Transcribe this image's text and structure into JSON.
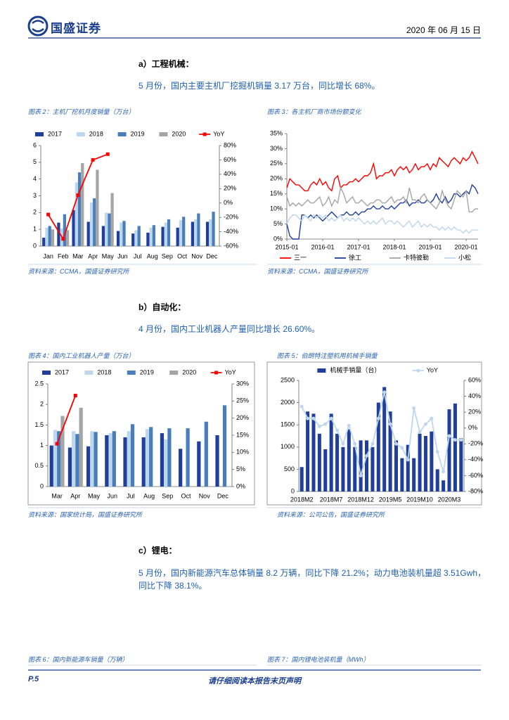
{
  "header": {
    "logo": "国盛证券",
    "date": "2020 年 06 月 15 日"
  },
  "sections": [
    {
      "heading": "a）工程机械：",
      "text": "5 月份，国内主要主机厂挖掘机销量 3.17 万台，同比增长 68%。"
    },
    {
      "heading": "b）自动化：",
      "text": "4 月份，国内工业机器人产量同比增长 26.60%。"
    },
    {
      "heading": "c）锂电：",
      "text": "5 月份，国内新能源汽车总体销量 8.2 万辆，同比下降 21.2%；动力电池装机量超 3.51Gwh，同比下降 38.1%。"
    }
  ],
  "figures": [
    {
      "title": "图表 2：主机厂挖机月度销量（万台）",
      "source": "资料来源：CCMA，国盛证券研究所"
    },
    {
      "title": "图表 3：各主机厂商市场份额变化",
      "source": "资料来源：CCMA，国盛证券研究所"
    },
    {
      "title": "图表 4：国内工业机器人产量（万台）",
      "source": "资料来源：国家统计局，国盛证券研究所"
    },
    {
      "title": "图表 5：伯朗特注塑机用机械手销量",
      "source": "资料来源：公司公告，国盛证券研究所"
    },
    {
      "title": "图表 6：国内新能源车销量（万辆）"
    },
    {
      "title": "图表 7：国内锂电池装机量（MWh）"
    }
  ],
  "footer": {
    "page": "P.5",
    "notice": "请仔细阅读本报告末页声明"
  },
  "chart_data": [
    {
      "type": "bar",
      "legend": "top",
      "categories": [
        "Jan",
        "Feb",
        "Mar",
        "Apr",
        "May",
        "Jun",
        "Jul",
        "Aug",
        "Sep",
        "Oct",
        "Nov",
        "Dec"
      ],
      "ylim": [
        0,
        6
      ],
      "yticks": [
        0,
        1,
        2,
        3,
        4,
        5,
        6
      ],
      "y2lim": [
        -60,
        80
      ],
      "y2ticks": [
        {
          "value": -60,
          "label": "-60%"
        },
        {
          "value": -40,
          "label": "-40%"
        },
        {
          "value": -20,
          "label": "-20%"
        },
        {
          "value": 0,
          "label": "0%"
        },
        {
          "value": 20,
          "label": "20%"
        },
        {
          "value": 40,
          "label": "40%"
        },
        {
          "value": 60,
          "label": "60%"
        },
        {
          "value": 80,
          "label": "80%"
        }
      ],
      "series": [
        {
          "name": "2017",
          "color": "#1f3f9a",
          "values": [
            0.5,
            1.4,
            2.15,
            1.45,
            1.2,
            0.9,
            0.75,
            0.8,
            1.15,
            1.1,
            1.45,
            1.45
          ]
        },
        {
          "name": "2018",
          "color": "#bdd7ee",
          "values": [
            1.1,
            1.05,
            3.8,
            2.6,
            2.0,
            1.4,
            0.95,
            1.1,
            1.4,
            1.55,
            1.6,
            1.6
          ]
        },
        {
          "name": "2019",
          "color": "#4a7ebb",
          "values": [
            1.2,
            1.9,
            4.4,
            2.85,
            1.95,
            1.5,
            1.2,
            1.25,
            1.6,
            1.75,
            1.95,
            2.05
          ]
        },
        {
          "name": "2020",
          "color": "#a5a5a5",
          "values": [
            1.0,
            0.95,
            4.95,
            4.55,
            3.17,
            null,
            null,
            null,
            null,
            null,
            null,
            null
          ]
        },
        {
          "name": "YoY",
          "color": "#ff0000",
          "type": "line",
          "axis": "y2",
          "marker": "square",
          "values": [
            -16,
            -50,
            11,
            60,
            68,
            null,
            null,
            null,
            null,
            null,
            null,
            null
          ]
        }
      ]
    },
    {
      "type": "line",
      "legend": "bottom",
      "categories": [
        "2015-01",
        null,
        null,
        null,
        null,
        null,
        null,
        null,
        null,
        null,
        null,
        null,
        "2016-01",
        null,
        null,
        null,
        null,
        null,
        null,
        null,
        null,
        null,
        null,
        null,
        "2017-01",
        null,
        null,
        null,
        null,
        null,
        null,
        null,
        null,
        null,
        null,
        null,
        "2018-01",
        null,
        null,
        null,
        null,
        null,
        null,
        null,
        null,
        null,
        null,
        null,
        "2019-01",
        null,
        null,
        null,
        null,
        null,
        null,
        null,
        null,
        null,
        null,
        null,
        "2020-01",
        null,
        null,
        null,
        null
      ],
      "ylim": [
        0,
        35
      ],
      "yticks": [
        {
          "value": 0,
          "label": "0%"
        },
        {
          "value": 5,
          "label": "5%"
        },
        {
          "value": 10,
          "label": "10%"
        },
        {
          "value": 15,
          "label": "15%"
        },
        {
          "value": 20,
          "label": "20%"
        },
        {
          "value": 25,
          "label": "25%"
        },
        {
          "value": 30,
          "label": "30%"
        },
        {
          "value": 35,
          "label": "35%"
        }
      ],
      "series": [
        {
          "name": "三一",
          "color": "#ff0000",
          "values": [
            17,
            20,
            19,
            18,
            18,
            17,
            16,
            16,
            18,
            19,
            18,
            20,
            18,
            19,
            17,
            16,
            20,
            21,
            17,
            18,
            18,
            19,
            19,
            20,
            19,
            20,
            21,
            21,
            22,
            25,
            20,
            21,
            21,
            22,
            22,
            23,
            21,
            23,
            24,
            23,
            24,
            22,
            23,
            25,
            23,
            24,
            24,
            25,
            23,
            25,
            24,
            27,
            26,
            25,
            24,
            26,
            27,
            26,
            25,
            27,
            26,
            27,
            29,
            27,
            25
          ]
        },
        {
          "name": "徐工",
          "color": "#1f3f9a",
          "values": [
            5,
            1,
            0,
            0,
            0,
            8,
            8,
            7,
            8,
            7,
            8,
            7,
            6,
            7,
            8,
            9,
            8,
            7,
            8,
            8,
            9,
            8,
            8,
            9,
            8,
            9,
            9,
            10,
            10,
            11,
            10,
            10,
            11,
            10,
            10,
            11,
            10,
            11,
            12,
            12,
            13,
            11,
            12,
            12,
            13,
            12,
            12,
            13,
            12,
            13,
            15,
            13,
            12,
            14,
            12,
            13,
            15,
            15,
            14,
            15,
            16,
            15,
            18,
            17,
            15
          ]
        },
        {
          "name": "卡特彼勒",
          "color": "#a5a5a5",
          "values": [
            14,
            11,
            12,
            11,
            12,
            11,
            12,
            13,
            12,
            12,
            13,
            14,
            11,
            12,
            14,
            11,
            13,
            12,
            17,
            15,
            12,
            13,
            14,
            12,
            12,
            13,
            12,
            11,
            12,
            12,
            13,
            13,
            12,
            12,
            13,
            14,
            12,
            13,
            13,
            14,
            12,
            17,
            13,
            13,
            12,
            14,
            15,
            13,
            12,
            11,
            10,
            12,
            16,
            13,
            11,
            10,
            13,
            16,
            15,
            14,
            16,
            9,
            9,
            10,
            10
          ]
        },
        {
          "name": "小松",
          "color": "#bdd7ee",
          "values": [
            5,
            7,
            8,
            8,
            7,
            6,
            8,
            7,
            6,
            8,
            7,
            8,
            7,
            8,
            6,
            7,
            6,
            7,
            8,
            6,
            7,
            6,
            7,
            6,
            7,
            6,
            5,
            6,
            5,
            6,
            5,
            6,
            7,
            5,
            6,
            6,
            5,
            6,
            5,
            4,
            5,
            6,
            4,
            5,
            6,
            4,
            5,
            4,
            5,
            4,
            4,
            3,
            4,
            3,
            4,
            3,
            4,
            3,
            3,
            2,
            3,
            2,
            3,
            3,
            3
          ]
        }
      ]
    },
    {
      "type": "bar",
      "legend": "top",
      "categories": [
        "Mar",
        "Apr",
        "May",
        "Jun",
        "Jul",
        "Aug",
        "Sep",
        "Oct",
        "Nov",
        "Dec"
      ],
      "ylim": [
        0,
        2.5
      ],
      "yticks": [
        0,
        0.5,
        1,
        1.5,
        2,
        2.5
      ],
      "y2lim": [
        0,
        30
      ],
      "y2ticks": [
        {
          "value": 0,
          "label": "0%"
        },
        {
          "value": 5,
          "label": "5%"
        },
        {
          "value": 10,
          "label": "10%"
        },
        {
          "value": 15,
          "label": "15%"
        },
        {
          "value": 20,
          "label": "20%"
        },
        {
          "value": 25,
          "label": "25%"
        },
        {
          "value": 30,
          "label": "30%"
        }
      ],
      "series": [
        {
          "name": "2017",
          "color": "#1f3f9a",
          "values": [
            1.0,
            0.95,
            0.98,
            1.25,
            1.2,
            1.2,
            1.3,
            0.92,
            1.1,
            1.25
          ]
        },
        {
          "name": "2018",
          "color": "#bdd7ee",
          "values": [
            1.38,
            1.35,
            1.35,
            1.3,
            1.35,
            1.4,
            1.15,
            null,
            null,
            null
          ]
        },
        {
          "name": "2019",
          "color": "#4a7ebb",
          "values": [
            1.35,
            1.28,
            1.33,
            1.35,
            1.52,
            1.45,
            1.42,
            1.42,
            1.58,
            1.98
          ]
        },
        {
          "name": "2020",
          "color": "#a5a5a5",
          "values": [
            1.72,
            1.92,
            null,
            null,
            null,
            null,
            null,
            null,
            null,
            null
          ]
        },
        {
          "name": "YoY",
          "color": "#ff0000",
          "type": "line",
          "axis": "y2",
          "marker": "square",
          "values": [
            12.5,
            26.6,
            null,
            null,
            null,
            null,
            null,
            null,
            null,
            null
          ]
        }
      ]
    },
    {
      "type": "bar",
      "legend": "top",
      "categories": [
        "2018M2",
        null,
        null,
        null,
        null,
        "2018M7",
        null,
        null,
        null,
        null,
        "2018M12",
        null,
        null,
        null,
        null,
        "2019M5",
        null,
        null,
        null,
        null,
        "2019M10",
        null,
        null,
        null,
        null,
        "2020M3",
        null,
        null
      ],
      "ylim": [
        0,
        2500
      ],
      "yticks": [
        0,
        500,
        1000,
        1500,
        2000,
        2500
      ],
      "y2lim": [
        -80,
        60
      ],
      "y2ticks": [
        {
          "value": -80,
          "label": "-80%"
        },
        {
          "value": -60,
          "label": "-60%"
        },
        {
          "value": -40,
          "label": "-40%"
        },
        {
          "value": -20,
          "label": "-20%"
        },
        {
          "value": 0,
          "label": "0%"
        },
        {
          "value": 20,
          "label": "20%"
        },
        {
          "value": 40,
          "label": "40%"
        },
        {
          "value": 60,
          "label": "60%"
        }
      ],
      "series": [
        {
          "name": "机械手销量（台）",
          "color": "#1f3f9a",
          "values": [
            550,
            1800,
            1750,
            1300,
            950,
            1750,
            1300,
            1000,
            1400,
            1000,
            1150,
            1150,
            1000,
            2000,
            2350,
            1800,
            1150,
            750,
            1050,
            750,
            1300,
            1250,
            1350,
            500,
            250,
            1850,
            1980,
            1200
          ]
        },
        {
          "name": "YoY",
          "color": "#bdd7ee",
          "type": "line",
          "axis": "y2",
          "marker": "circle",
          "values": [
            27,
            12,
            12,
            2,
            5,
            12,
            -3,
            -20,
            3,
            -20,
            -60,
            -35,
            -20,
            12,
            45,
            5,
            -20,
            -25,
            -40,
            25,
            -5,
            5,
            12,
            -30,
            -55,
            -10,
            -15,
            -15
          ]
        }
      ]
    }
  ]
}
